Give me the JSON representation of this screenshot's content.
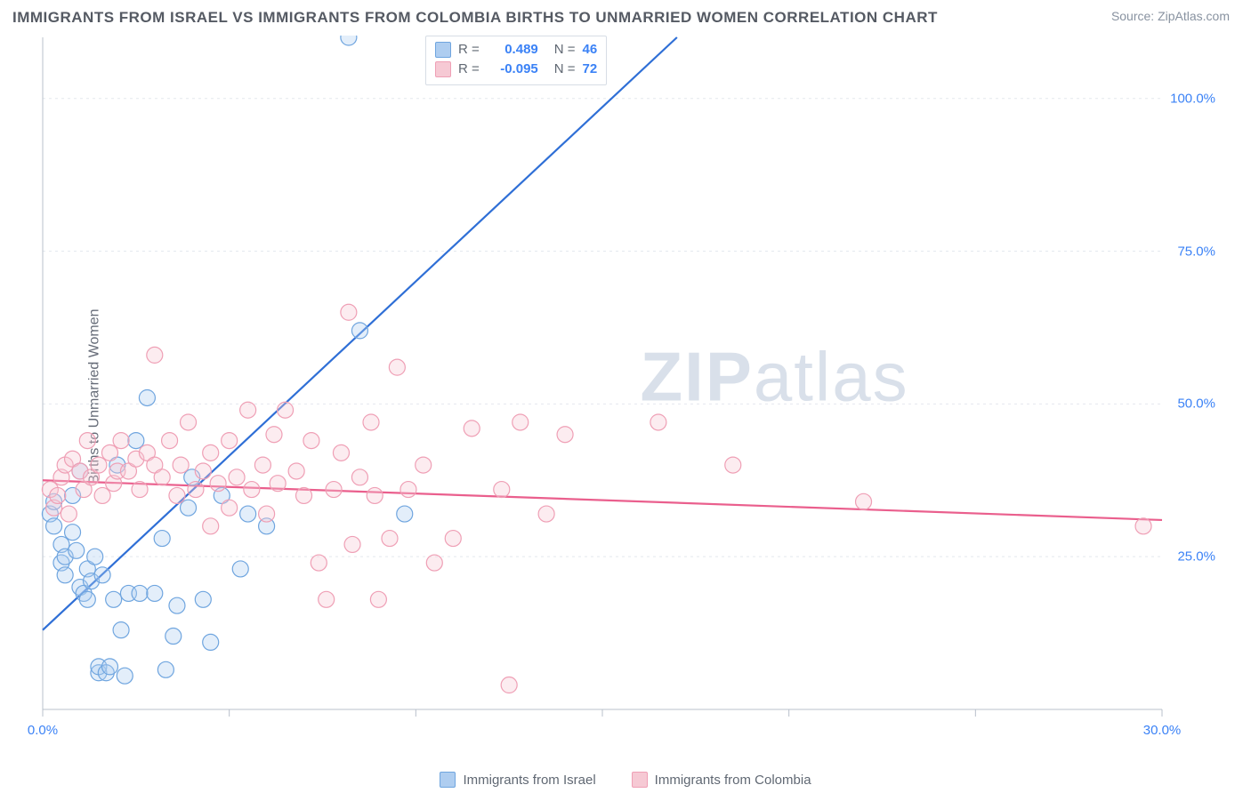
{
  "title": "IMMIGRANTS FROM ISRAEL VS IMMIGRANTS FROM COLOMBIA BIRTHS TO UNMARRIED WOMEN CORRELATION CHART",
  "source_prefix": "Source: ",
  "source_name": "ZipAtlas.com",
  "ylabel": "Births to Unmarried Women",
  "watermark_bold": "ZIP",
  "watermark_rest": "atlas",
  "chart": {
    "type": "scatter",
    "xlim": [
      0,
      30
    ],
    "ylim": [
      0,
      110
    ],
    "x_ticks": [
      0,
      5,
      10,
      15,
      20,
      25,
      30
    ],
    "x_tick_labels": {
      "0": "0.0%",
      "30": "30.0%"
    },
    "y_ticks": [
      25,
      50,
      75,
      100
    ],
    "y_tick_labels": {
      "25": "25.0%",
      "50": "50.0%",
      "75": "75.0%",
      "100": "100.0%"
    },
    "background_color": "#ffffff",
    "grid_color": "#e4e8ee",
    "axis_line_color": "#b8c0cb",
    "tick_length": 8,
    "marker_radius": 9,
    "marker_fill_opacity": 0.35,
    "marker_stroke_width": 1.2,
    "trend_line_width": 2.2,
    "trend_dash": "5,5",
    "ytick_label_color": "#3b82f6",
    "xtick_label_color": "#3b82f6",
    "label_fontsize": 15
  },
  "series": [
    {
      "name": "Immigrants from Israel",
      "color_fill": "#aecdf0",
      "color_stroke": "#6fa5df",
      "trend_color": "#2f6fd6",
      "R": "0.489",
      "N": "46",
      "trend": {
        "x1": 0,
        "y1": 13,
        "x2": 17,
        "y2": 110
      },
      "points": [
        [
          0.2,
          32
        ],
        [
          0.3,
          30
        ],
        [
          0.3,
          34
        ],
        [
          0.5,
          27
        ],
        [
          0.5,
          24
        ],
        [
          0.6,
          25
        ],
        [
          0.6,
          22
        ],
        [
          0.8,
          35
        ],
        [
          0.8,
          29
        ],
        [
          0.9,
          26
        ],
        [
          1.0,
          20
        ],
        [
          1.0,
          39
        ],
        [
          1.1,
          19
        ],
        [
          1.2,
          23
        ],
        [
          1.2,
          18
        ],
        [
          1.3,
          21
        ],
        [
          1.4,
          25
        ],
        [
          1.5,
          6
        ],
        [
          1.5,
          7
        ],
        [
          1.6,
          22
        ],
        [
          1.7,
          6
        ],
        [
          1.8,
          7
        ],
        [
          1.9,
          18
        ],
        [
          2.0,
          40
        ],
        [
          2.1,
          13
        ],
        [
          2.2,
          5.5
        ],
        [
          2.3,
          19
        ],
        [
          2.5,
          44
        ],
        [
          2.6,
          19
        ],
        [
          2.8,
          51
        ],
        [
          3.0,
          19
        ],
        [
          3.2,
          28
        ],
        [
          3.3,
          6.5
        ],
        [
          3.5,
          12
        ],
        [
          3.6,
          17
        ],
        [
          3.9,
          33
        ],
        [
          4.0,
          38
        ],
        [
          4.3,
          18
        ],
        [
          4.5,
          11
        ],
        [
          4.8,
          35
        ],
        [
          5.3,
          23
        ],
        [
          5.5,
          32
        ],
        [
          8.2,
          110
        ],
        [
          8.5,
          62
        ],
        [
          9.7,
          32
        ],
        [
          6.0,
          30
        ]
      ]
    },
    {
      "name": "Immigrants from Colombia",
      "color_fill": "#f6c9d4",
      "color_stroke": "#ef9fb5",
      "trend_color": "#ea5f8d",
      "R": "-0.095",
      "N": "72",
      "trend": {
        "x1": 0,
        "y1": 37.5,
        "x2": 30,
        "y2": 31
      },
      "points": [
        [
          0.2,
          36
        ],
        [
          0.3,
          33
        ],
        [
          0.4,
          35
        ],
        [
          0.5,
          38
        ],
        [
          0.6,
          40
        ],
        [
          0.7,
          32
        ],
        [
          0.8,
          41
        ],
        [
          1.0,
          39
        ],
        [
          1.1,
          36
        ],
        [
          1.2,
          44
        ],
        [
          1.3,
          38
        ],
        [
          1.5,
          40
        ],
        [
          1.6,
          35
        ],
        [
          1.8,
          42
        ],
        [
          1.9,
          37
        ],
        [
          2.0,
          39
        ],
        [
          2.1,
          44
        ],
        [
          2.3,
          39
        ],
        [
          2.5,
          41
        ],
        [
          2.6,
          36
        ],
        [
          2.8,
          42
        ],
        [
          3.0,
          40
        ],
        [
          3.0,
          58
        ],
        [
          3.2,
          38
        ],
        [
          3.4,
          44
        ],
        [
          3.6,
          35
        ],
        [
          3.7,
          40
        ],
        [
          3.9,
          47
        ],
        [
          4.1,
          36
        ],
        [
          4.3,
          39
        ],
        [
          4.5,
          42
        ],
        [
          4.5,
          30
        ],
        [
          4.7,
          37
        ],
        [
          5.0,
          44
        ],
        [
          5.0,
          33
        ],
        [
          5.2,
          38
        ],
        [
          5.5,
          49
        ],
        [
          5.6,
          36
        ],
        [
          5.9,
          40
        ],
        [
          6.0,
          32
        ],
        [
          6.2,
          45
        ],
        [
          6.3,
          37
        ],
        [
          6.5,
          49
        ],
        [
          6.8,
          39
        ],
        [
          7.0,
          35
        ],
        [
          7.2,
          44
        ],
        [
          7.4,
          24
        ],
        [
          7.6,
          18
        ],
        [
          7.8,
          36
        ],
        [
          8.0,
          42
        ],
        [
          8.2,
          65
        ],
        [
          8.3,
          27
        ],
        [
          8.5,
          38
        ],
        [
          8.8,
          47
        ],
        [
          8.9,
          35
        ],
        [
          9.0,
          18
        ],
        [
          9.3,
          28
        ],
        [
          9.5,
          56
        ],
        [
          9.8,
          36
        ],
        [
          10.2,
          40
        ],
        [
          10.5,
          24
        ],
        [
          11.0,
          28
        ],
        [
          11.5,
          46
        ],
        [
          12.3,
          36
        ],
        [
          12.5,
          4
        ],
        [
          12.8,
          47
        ],
        [
          13.5,
          32
        ],
        [
          14.0,
          45
        ],
        [
          16.5,
          47
        ],
        [
          18.5,
          40
        ],
        [
          22.0,
          34
        ],
        [
          29.5,
          30
        ]
      ]
    }
  ],
  "legend_top": {
    "r_label": "R =",
    "n_label": "N ="
  },
  "legend_bottom": [
    {
      "swatch_fill": "#aecdf0",
      "swatch_stroke": "#6fa5df",
      "label": "Immigrants from Israel"
    },
    {
      "swatch_fill": "#f6c9d4",
      "swatch_stroke": "#ef9fb5",
      "label": "Immigrants from Colombia"
    }
  ]
}
